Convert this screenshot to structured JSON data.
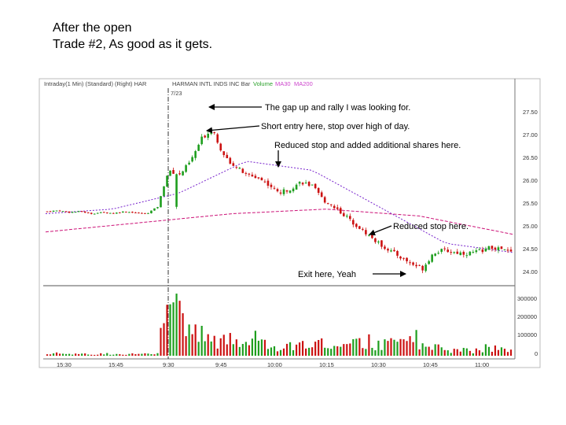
{
  "slide": {
    "title_line1": "After the open",
    "title_line2": "Trade #2, As good as it gets."
  },
  "chart_header": {
    "left": "Intraday(1 Min) (Standard) (Right) HAR",
    "name": "HARMAN INTL INDS INC  Bar",
    "vol": "Volume",
    "ma30": "MA30",
    "ma200": "MA200",
    "date": "7/23",
    "colors": {
      "text": "#444444",
      "vol": "#2aa02a",
      "ma": "#cc44cc"
    }
  },
  "annotations": [
    "The gap up and rally I was looking for.",
    "Short entry here, stop over high of day.",
    "Reduced stop and added additional shares here.",
    "Reduced stop here.",
    "Exit here, Yeah"
  ],
  "chart_data": {
    "type": "candlestick",
    "price_axis": {
      "ticks": [
        27.5,
        27.0,
        26.5,
        26.0,
        25.5,
        25.0,
        24.5,
        24.0
      ],
      "labels": [
        "27.50",
        "27.00",
        "26.50",
        "26.00",
        "25.50",
        "25.00",
        "24.50",
        "24.00"
      ]
    },
    "volume_axis": {
      "ticks": [
        300000,
        200000,
        100000,
        0
      ],
      "labels": [
        "300000",
        "200000",
        "100000",
        "0"
      ]
    },
    "time_labels": [
      "15:30",
      "15:45",
      "9:30",
      "9:45",
      "10:00",
      "10:15",
      "10:30",
      "10:45",
      "11:00"
    ],
    "series": [
      {
        "name": "HARMAN INTL INDS INC",
        "color_up": "#1e9e1e",
        "color_down": "#cc1111"
      },
      {
        "name": "MA30",
        "color": "#7722cc"
      },
      {
        "name": "MA200",
        "color": "#cc1177"
      },
      {
        "name": "Volume"
      }
    ],
    "close_path": [
      25.3,
      25.32,
      25.28,
      25.3,
      25.25,
      25.28,
      25.26,
      25.3,
      25.27,
      25.25,
      25.4,
      26.2,
      26.1,
      26.4,
      26.9,
      27.1,
      26.5,
      26.3,
      26.1,
      26.05,
      25.9,
      25.7,
      25.8,
      25.95,
      25.85,
      25.55,
      25.4,
      25.2,
      25.0,
      24.8,
      24.6,
      24.45,
      24.3,
      24.15,
      24.05,
      24.4,
      24.45,
      24.4,
      24.38,
      24.42,
      24.5,
      24.48,
      24.4
    ],
    "volume_pattern": [
      8000,
      12000,
      10000,
      9000,
      7000,
      11000,
      9000,
      10000,
      8000,
      9000,
      12000,
      320000,
      190000,
      140000,
      110000,
      90000,
      70000,
      85000,
      60000,
      110000,
      50000,
      40000,
      45000,
      60000,
      55000,
      70000,
      50000,
      45000,
      60000,
      80000,
      55000,
      60000,
      70000,
      120000,
      50000,
      40000,
      35000,
      30000,
      28000,
      25000,
      45000,
      30000,
      25000
    ],
    "ma200_path": [
      24.85,
      25.05,
      25.25,
      25.35,
      25.2,
      24.8
    ],
    "ma30_path": [
      25.25,
      25.35,
      25.7,
      26.4,
      26.2,
      25.4,
      24.6,
      24.4
    ]
  }
}
